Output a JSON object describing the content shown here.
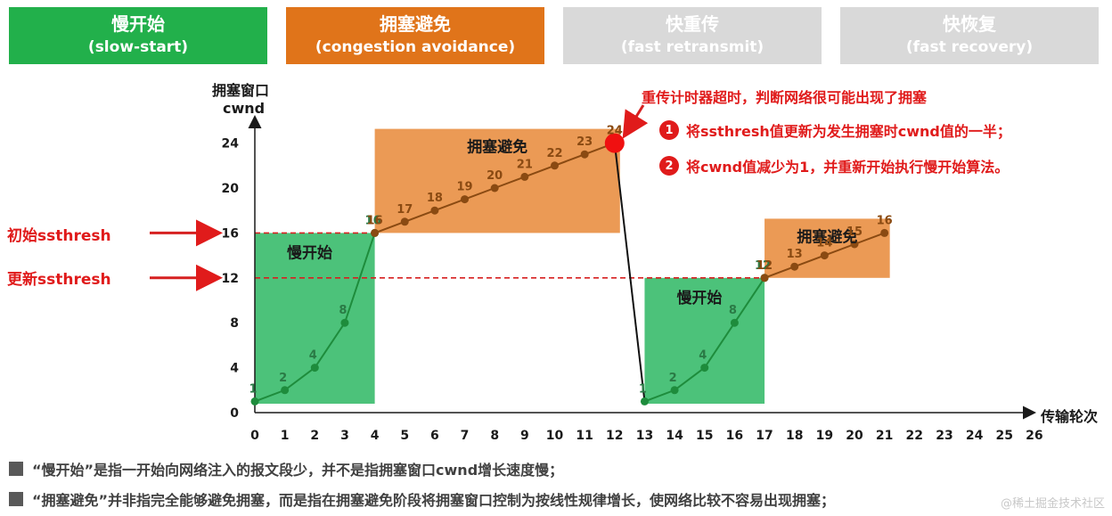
{
  "phases": [
    {
      "name": "慢开始",
      "en": "(slow-start)",
      "style": "active-green"
    },
    {
      "name": "拥塞避免",
      "en": "(congestion avoidance)",
      "style": "active-orange"
    },
    {
      "name": "快重传",
      "en": "(fast retransmit)",
      "style": "inactive"
    },
    {
      "name": "快恢复",
      "en": "(fast recovery)",
      "style": "inactive"
    }
  ],
  "axis": {
    "y_title_line1": "拥塞窗口",
    "y_title_line2": "cwnd",
    "x_title": "传输轮次"
  },
  "left_labels": {
    "initial_ssthresh": "初始ssthresh",
    "updated_ssthresh": "更新ssthresh"
  },
  "annotation": {
    "heading": "重传计时器超时，判断网络很可能出现了拥塞",
    "items": [
      {
        "num": "1",
        "text": "将ssthresh值更新为发生拥塞时cwnd值的一半；"
      },
      {
        "num": "2",
        "text": "将cwnd值减少为1，并重新开始执行慢开始算法。"
      }
    ]
  },
  "notes": [
    "“慢开始”是指一开始向网络注入的报文段少，并不是指拥塞窗口cwnd增长速度慢；",
    "“拥塞避免”并非指完全能够避免拥塞，而是指在拥塞避免阶段将拥塞窗口控制为按线性规律增长，使网络比较不容易出现拥塞；"
  ],
  "watermark": "@稀土掘金技术社区",
  "colors": {
    "green_region": "#4cc27a",
    "orange_region": "#eb9a55",
    "slow_line": "#1e8c3c",
    "avoid_line": "#8a4a12",
    "axis": "#1a1a1a",
    "threshold": "#d62020",
    "timeout_dot": "#f01010"
  },
  "chart_data": {
    "type": "line",
    "xlabel": "传输轮次",
    "ylabel": "拥塞窗口 cwnd",
    "xlim": [
      0,
      26
    ],
    "ylim": [
      0,
      24
    ],
    "x_ticks": [
      0,
      1,
      2,
      3,
      4,
      5,
      6,
      7,
      8,
      9,
      10,
      11,
      12,
      13,
      14,
      15,
      16,
      17,
      18,
      19,
      20,
      21,
      22,
      23,
      24,
      25,
      26
    ],
    "y_ticks": [
      0,
      4,
      8,
      12,
      16,
      20,
      24
    ],
    "thresholds": [
      {
        "label": "初始ssthresh",
        "value": 16
      },
      {
        "label": "更新ssthresh",
        "value": 12
      }
    ],
    "regions": [
      {
        "label": "慢开始",
        "phase": "slow-start",
        "x": [
          0,
          4
        ],
        "y": [
          0,
          16
        ]
      },
      {
        "label": "拥塞避免",
        "phase": "avoidance",
        "x": [
          4,
          12
        ],
        "y": [
          16,
          24
        ]
      },
      {
        "label": "慢开始",
        "phase": "slow-start",
        "x": [
          13,
          17
        ],
        "y": [
          0,
          12
        ]
      },
      {
        "label": "拥塞避免",
        "phase": "avoidance",
        "x": [
          17,
          21
        ],
        "y": [
          12,
          16
        ]
      }
    ],
    "series": [
      {
        "phase": "slow-start",
        "x": [
          0,
          1,
          2,
          3,
          4
        ],
        "y": [
          1,
          2,
          4,
          8,
          16
        ]
      },
      {
        "phase": "avoidance",
        "x": [
          4,
          5,
          6,
          7,
          8,
          9,
          10,
          11,
          12
        ],
        "y": [
          16,
          17,
          18,
          19,
          20,
          21,
          22,
          23,
          24
        ]
      },
      {
        "phase": "timeout",
        "x": [
          12,
          13
        ],
        "y": [
          24,
          1
        ]
      },
      {
        "phase": "slow-start",
        "x": [
          13,
          14,
          15,
          16,
          17
        ],
        "y": [
          1,
          2,
          4,
          8,
          12
        ]
      },
      {
        "phase": "avoidance",
        "x": [
          17,
          18,
          19,
          20,
          21
        ],
        "y": [
          12,
          13,
          14,
          15,
          16
        ]
      }
    ],
    "timeout_point": {
      "x": 12,
      "y": 24
    }
  }
}
